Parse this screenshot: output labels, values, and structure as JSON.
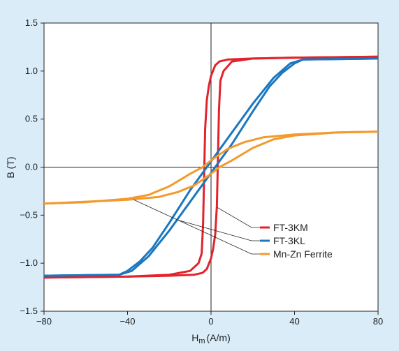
{
  "chart_data": {
    "type": "line",
    "xlabel_main": "H",
    "xlabel_sub": "m",
    "xlabel_unit": "(A/m)",
    "ylabel": "B (T)",
    "xlim": [
      -80,
      80
    ],
    "ylim": [
      -1.5,
      1.5
    ],
    "xticks": [
      "−80",
      "−40",
      "0",
      "40",
      "80"
    ],
    "yticks": [
      "1.5",
      "1.0",
      "0.5",
      "0.0",
      "−0.5",
      "−1.0",
      "−1.5"
    ],
    "xtick_values": [
      -80,
      -40,
      0,
      40,
      80
    ],
    "ytick_values": [
      1.5,
      1.0,
      0.5,
      0.0,
      -0.5,
      -1.0,
      -1.5
    ],
    "grid": false,
    "legend_position": "bottom-right",
    "series": [
      {
        "name": "FT-3KM",
        "color": "#e2232c",
        "upper": [
          [
            -80,
            -1.15
          ],
          [
            -40,
            -1.14
          ],
          [
            -20,
            -1.12
          ],
          [
            -10,
            -1.08
          ],
          [
            -6,
            -1.0
          ],
          [
            -4.5,
            -0.9
          ],
          [
            -3.8,
            -0.6
          ],
          [
            -3.2,
            0.0
          ],
          [
            -2.8,
            0.4
          ],
          [
            -2,
            0.7
          ],
          [
            -1,
            0.85
          ],
          [
            0,
            0.95
          ],
          [
            2,
            1.06
          ],
          [
            4,
            1.1
          ],
          [
            8,
            1.12
          ],
          [
            20,
            1.13
          ],
          [
            40,
            1.14
          ],
          [
            80,
            1.15
          ]
        ],
        "lower": [
          [
            80,
            1.15
          ],
          [
            40,
            1.14
          ],
          [
            20,
            1.13
          ],
          [
            10,
            1.1
          ],
          [
            6,
            1.0
          ],
          [
            4.5,
            0.9
          ],
          [
            3.8,
            0.6
          ],
          [
            3.2,
            0.0
          ],
          [
            2.8,
            -0.4
          ],
          [
            2,
            -0.7
          ],
          [
            1,
            -0.85
          ],
          [
            0,
            -0.95
          ],
          [
            -2,
            -1.06
          ],
          [
            -4,
            -1.1
          ],
          [
            -8,
            -1.12
          ],
          [
            -20,
            -1.13
          ],
          [
            -40,
            -1.14
          ],
          [
            -80,
            -1.15
          ]
        ]
      },
      {
        "name": "FT-3KL",
        "color": "#1a77c0",
        "upper": [
          [
            -80,
            -1.13
          ],
          [
            -44,
            -1.12
          ],
          [
            -40,
            -1.08
          ],
          [
            -34,
            -0.98
          ],
          [
            -28,
            -0.84
          ],
          [
            -20,
            -0.58
          ],
          [
            -10,
            -0.24
          ],
          [
            -1,
            0.03
          ],
          [
            10,
            0.36
          ],
          [
            20,
            0.66
          ],
          [
            30,
            0.93
          ],
          [
            38,
            1.08
          ],
          [
            44,
            1.12
          ],
          [
            80,
            1.13
          ]
        ],
        "lower": [
          [
            80,
            1.13
          ],
          [
            44,
            1.12
          ],
          [
            40,
            1.08
          ],
          [
            34,
            0.98
          ],
          [
            28,
            0.84
          ],
          [
            20,
            0.58
          ],
          [
            10,
            0.24
          ],
          [
            1,
            -0.03
          ],
          [
            -10,
            -0.36
          ],
          [
            -20,
            -0.66
          ],
          [
            -30,
            -0.93
          ],
          [
            -38,
            -1.08
          ],
          [
            -44,
            -1.12
          ],
          [
            -80,
            -1.13
          ]
        ]
      },
      {
        "name": "Mn-Zn Ferrite",
        "color": "#f39a2e",
        "upper": [
          [
            -80,
            -0.38
          ],
          [
            -60,
            -0.365
          ],
          [
            -40,
            -0.33
          ],
          [
            -30,
            -0.29
          ],
          [
            -20,
            -0.2
          ],
          [
            -10,
            -0.07
          ],
          [
            -4,
            0.0
          ],
          [
            0,
            0.07
          ],
          [
            8,
            0.19
          ],
          [
            16,
            0.26
          ],
          [
            25,
            0.31
          ],
          [
            40,
            0.34
          ],
          [
            60,
            0.36
          ],
          [
            80,
            0.37
          ]
        ],
        "lower": [
          [
            80,
            0.37
          ],
          [
            60,
            0.36
          ],
          [
            40,
            0.33
          ],
          [
            30,
            0.29
          ],
          [
            20,
            0.2
          ],
          [
            10,
            0.07
          ],
          [
            4,
            0.0
          ],
          [
            0,
            -0.07
          ],
          [
            -8,
            -0.19
          ],
          [
            -16,
            -0.26
          ],
          [
            -25,
            -0.31
          ],
          [
            -40,
            -0.34
          ],
          [
            -60,
            -0.36
          ],
          [
            -80,
            -0.38
          ]
        ]
      }
    ],
    "legend_leaders": [
      {
        "from": [
          3,
          -0.42
        ],
        "legend_index": 0
      },
      {
        "from": [
          -16,
          -0.55
        ],
        "legend_index": 1
      },
      {
        "from": [
          -37,
          -0.34
        ],
        "legend_index": 2
      }
    ]
  }
}
